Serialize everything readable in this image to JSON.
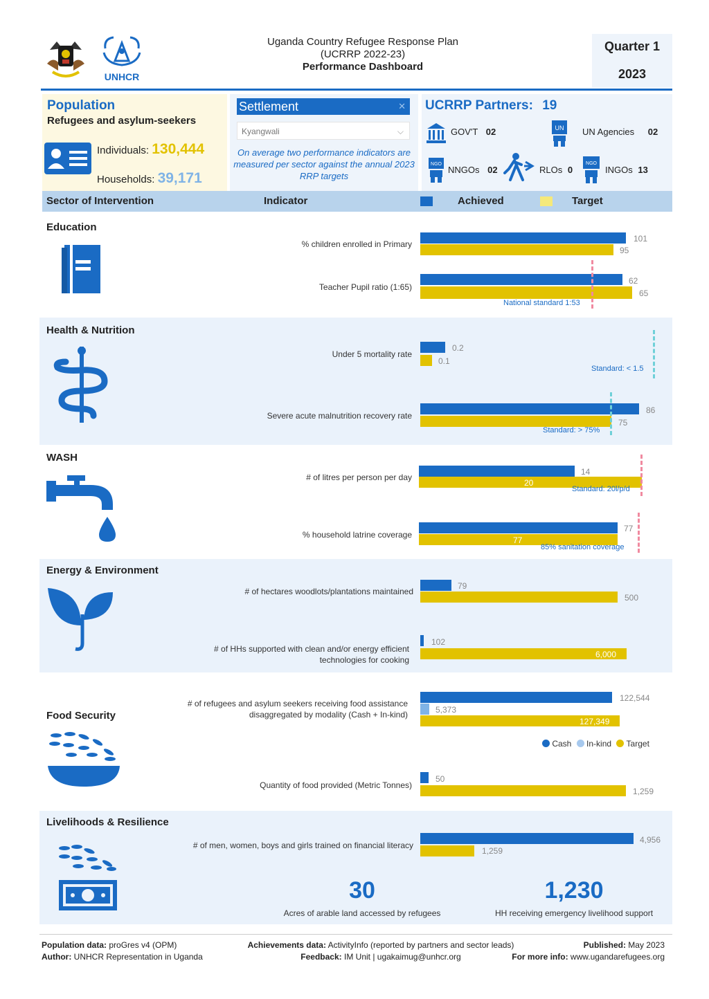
{
  "header": {
    "line1": "Uganda Country Refugee Response Plan",
    "line2": "(UCRRP 2022-23)",
    "line3": "Performance Dashboard",
    "quarter": "Quarter 1",
    "year": "2023",
    "logo_text": "UNHCR"
  },
  "population": {
    "title": "Population",
    "subtitle": "Refugees and asylum-seekers",
    "individuals_label": "Individuals:",
    "individuals_value": "130,444",
    "households_label": "Households:",
    "households_value": "39,171"
  },
  "settlement": {
    "label": "Settlement",
    "selected": "Kyangwali",
    "note": "On average two performance indicators are measured per sector against the annual 2023 RRP targets"
  },
  "partners": {
    "title": "UCRRP Partners:",
    "count": "19",
    "govt_label": "GOV'T",
    "govt_value": "02",
    "un_label": "UN Agencies",
    "un_value": "02",
    "nngo_label": "NNGOs",
    "nngo_value": "02",
    "rlo_label": "RLOs",
    "rlo_value": "0",
    "ingo_label": "INGOs",
    "ingo_value": "13"
  },
  "columns": {
    "sector": "Sector of Intervention",
    "indicator": "Indicator",
    "achieved": "Achieved",
    "target": "Target"
  },
  "colors": {
    "achieved": "#1a6bc4",
    "target": "#e2c200",
    "band": "#eaf2fb"
  },
  "sectors": {
    "education": {
      "title": "Education",
      "i1": "% children enrolled in Primary",
      "i1_a": "101",
      "i1_t": "95",
      "i2": "Teacher Pupil ratio (1:65)",
      "i2_a": "62",
      "i2_t": "65",
      "i2_std": "National standard 1:53"
    },
    "health": {
      "title": "Health & Nutrition",
      "i1": "Under 5 mortality rate",
      "i1_a": "0.2",
      "i1_t": "0.1",
      "i1_std": "Standard: < 1.5",
      "i2": "Severe acute malnutrition recovery rate",
      "i2_a": "86",
      "i2_t": "75",
      "i2_std": "Standard: > 75%"
    },
    "wash": {
      "title": "WASH",
      "i1": "# of litres per person per day",
      "i1_a": "14",
      "i1_t": "20",
      "i1_std": "Standard: 20l/p/d",
      "i2": "% household latrine coverage",
      "i2_a": "77",
      "i2_t": "77",
      "i2_std": "85% sanitation coverage"
    },
    "energy": {
      "title": "Energy & Environment",
      "i1": "# of hectares woodlots/plantations maintained",
      "i1_a": "79",
      "i1_t": "500",
      "i2a": "# of HHs supported with clean and/or energy efficient",
      "i2b": "technologies for cooking",
      "i2_a": "102",
      "i2_t": "6,000"
    },
    "food": {
      "title": "Food Security",
      "i1a": "# of refugees and asylum seekers receiving food assistance",
      "i1b": "disaggregated by modality (Cash + In-kind)",
      "i1_cash": "122,544",
      "i1_inkind": "5,373",
      "i1_t": "127,349",
      "legend_cash": "Cash",
      "legend_inkind": "In-kind",
      "legend_target": "Target",
      "i2": "Quantity of food provided (Metric Tonnes)",
      "i2_a": "50",
      "i2_t": "1,259"
    },
    "livelihoods": {
      "title": "Livelihoods & Resilience",
      "i1": "# of men, women, boys and girls trained on financial literacy",
      "i1_a": "4,956",
      "i1_t": "1,259",
      "kpi1_value": "30",
      "kpi1_label": "Acres of arable land accessed by refugees",
      "kpi2_value": "1,230",
      "kpi2_label": "HH receiving emergency livelihood support"
    }
  },
  "footer": {
    "pop_label": "Population data:",
    "pop_value": "proGres v4 (OPM)",
    "author_label": "Author:",
    "author_value": "UNHCR Representation in Uganda",
    "ach_label": "Achievements data:",
    "ach_value": "ActivityInfo (reported by partners and sector leads)",
    "fb_label": "Feedback:",
    "fb_value": "IM Unit | ugakaimug@unhcr.org",
    "pub_label": "Published:",
    "pub_value": "May 2023",
    "more_label": "For more info:",
    "more_value": "www.ugandarefugees.org"
  }
}
